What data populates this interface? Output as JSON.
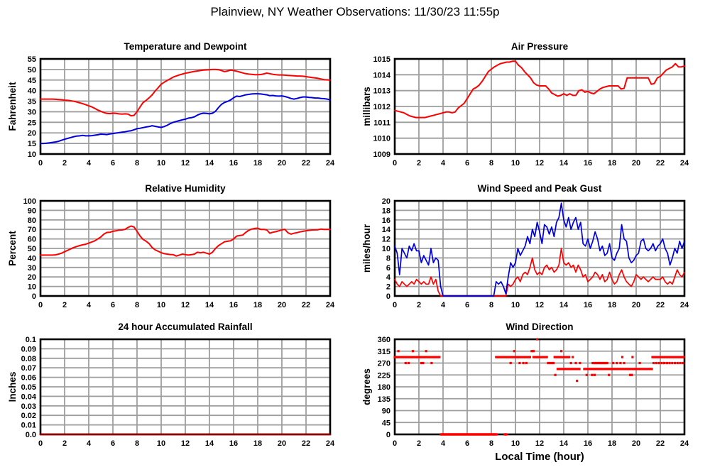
{
  "page": {
    "title": "Plainview, NY Weather Observations: 11/30/23 11:55p"
  },
  "colors": {
    "red": "#ff0000",
    "blue": "#0000dd",
    "dark_red": "#990000",
    "grid": "#9e9e9e",
    "border": "#000000",
    "background": "#ffffff"
  },
  "chart_data": [
    {
      "id": "temperature-dewpoint",
      "type": "line",
      "title": "Temperature and Dewpoint",
      "ylabel": "Fahrenheit",
      "xlabel": "",
      "xmin": 0,
      "xmax": 24,
      "xtick_step": 2,
      "ymin": 10,
      "ymax": 55,
      "yticks": [
        10,
        15,
        20,
        25,
        30,
        35,
        40,
        45,
        50,
        55
      ],
      "grid": true,
      "series": [
        {
          "name": "Temperature",
          "type": "line",
          "color_key": "red",
          "width": 2,
          "x0": 0,
          "dx": 0.25,
          "values": [
            36,
            36,
            36,
            36,
            36,
            35.9,
            35.8,
            35.7,
            35.5,
            35.4,
            35.2,
            35,
            34.6,
            34.2,
            33.8,
            33.3,
            32.8,
            32.3,
            31.6,
            30.8,
            30.2,
            29.6,
            29.2,
            29.1,
            29.3,
            29.2,
            29,
            28.9,
            29,
            28.9,
            28.1,
            28.3,
            30,
            32.3,
            34.3,
            35.4,
            36.6,
            38,
            39.8,
            41.4,
            43,
            44,
            44.8,
            45.6,
            46.4,
            46.9,
            47.4,
            47.8,
            48.2,
            48.5,
            48.8,
            49.1,
            49.3,
            49.5,
            49.7,
            49.8,
            49.9,
            50,
            50,
            49.9,
            49.5,
            49,
            49.3,
            49.7,
            49.5,
            49.2,
            48.8,
            48.4,
            48,
            47.8,
            47.7,
            47.5,
            47.5,
            47.6,
            47.9,
            48.3,
            48,
            47.7,
            47.5,
            47.4,
            47.4,
            47.3,
            47.2,
            47.1,
            47,
            46.9,
            46.9,
            46.8,
            46.6,
            46.4,
            46.2,
            46,
            45.8,
            45.5,
            45.2,
            45.1,
            45
          ]
        },
        {
          "name": "Dewpoint",
          "type": "line",
          "color_key": "blue",
          "width": 2,
          "x0": 0,
          "dx": 0.25,
          "values": [
            15,
            15,
            15.1,
            15.3,
            15.5,
            15.7,
            16,
            16.5,
            17,
            17.4,
            17.8,
            18.2,
            18.5,
            18.6,
            18.8,
            18.6,
            18.6,
            18.7,
            18.9,
            19.1,
            19.4,
            19.3,
            19.2,
            19.5,
            19.7,
            19.9,
            20.1,
            20.3,
            20.5,
            20.8,
            21,
            21.5,
            22,
            22.2,
            22.5,
            22.8,
            23,
            23.4,
            23.1,
            22.8,
            22.6,
            23,
            23.6,
            24.4,
            25,
            25.4,
            25.8,
            26.2,
            26.5,
            27,
            27.2,
            27.6,
            28.4,
            29,
            29.3,
            29.2,
            29,
            29.3,
            30.2,
            32,
            33.5,
            34.4,
            34.9,
            35.6,
            36.6,
            37.4,
            37.2,
            37.6,
            38,
            38.2,
            38.4,
            38.5,
            38.5,
            38.4,
            38.2,
            38,
            37.6,
            37.7,
            37.5,
            37.4,
            37.5,
            37.2,
            36.8,
            36.3,
            36,
            36.3,
            36.7,
            37,
            37,
            36.8,
            36.7,
            36.5,
            36.5,
            36.3,
            36.2,
            36,
            35.6
          ]
        }
      ]
    },
    {
      "id": "air-pressure",
      "type": "line",
      "title": "Air Pressure",
      "ylabel": "millibars",
      "xlabel": "",
      "xmin": 0,
      "xmax": 24,
      "xtick_step": 2,
      "ymin": 1009,
      "ymax": 1015,
      "yticks": [
        1009,
        1010,
        1011,
        1012,
        1013,
        1014,
        1015
      ],
      "grid": true,
      "series": [
        {
          "name": "Air Pressure",
          "type": "line",
          "color_key": "red",
          "width": 2,
          "x0": 0,
          "dx": 0.25,
          "values": [
            1011.75,
            1011.7,
            1011.65,
            1011.6,
            1011.5,
            1011.4,
            1011.35,
            1011.3,
            1011.3,
            1011.3,
            1011.3,
            1011.35,
            1011.4,
            1011.45,
            1011.5,
            1011.55,
            1011.6,
            1011.65,
            1011.65,
            1011.6,
            1011.65,
            1011.9,
            1012.05,
            1012.2,
            1012.5,
            1012.8,
            1013.1,
            1013.2,
            1013.35,
            1013.6,
            1013.9,
            1014.2,
            1014.35,
            1014.5,
            1014.6,
            1014.7,
            1014.75,
            1014.8,
            1014.8,
            1014.85,
            1014.85,
            1014.6,
            1014.45,
            1014.2,
            1014,
            1013.8,
            1013.5,
            1013.35,
            1013.3,
            1013.3,
            1013.3,
            1013.1,
            1012.85,
            1012.75,
            1012.65,
            1012.7,
            1012.8,
            1012.7,
            1012.8,
            1012.7,
            1012.7,
            1013,
            1013.05,
            1012.9,
            1012.95,
            1012.85,
            1012.8,
            1012.95,
            1013.1,
            1013.2,
            1013.25,
            1013.3,
            1013.3,
            1013.3,
            1013.3,
            1013.1,
            1013.15,
            1013.8,
            1013.8,
            1013.8,
            1013.8,
            1013.8,
            1013.8,
            1013.8,
            1013.8,
            1013.4,
            1013.45,
            1013.8,
            1013.9,
            1014.1,
            1014.3,
            1014.4,
            1014.5,
            1014.7,
            1014.5,
            1014.5,
            1014.55
          ]
        }
      ]
    },
    {
      "id": "relative-humidity",
      "type": "line",
      "title": "Relative Humidity",
      "ylabel": "Percent",
      "xlabel": "",
      "xmin": 0,
      "xmax": 24,
      "xtick_step": 2,
      "ymin": 0,
      "ymax": 100,
      "yticks": [
        0,
        10,
        20,
        30,
        40,
        50,
        60,
        70,
        80,
        90,
        100
      ],
      "grid": true,
      "series": [
        {
          "name": "Relative Humidity",
          "type": "line",
          "color_key": "red",
          "width": 2,
          "x0": 0,
          "dx": 0.25,
          "values": [
            43,
            43,
            43,
            43,
            43,
            43.3,
            44,
            45,
            46.5,
            48,
            49.5,
            51,
            52,
            53,
            53.8,
            54.4,
            55.5,
            56.8,
            58,
            60,
            62,
            65,
            66.8,
            67,
            68,
            68.4,
            69.3,
            69.4,
            70,
            72,
            73.5,
            72.5,
            68,
            63,
            59.5,
            57.5,
            55,
            51,
            48.5,
            47,
            45.5,
            44.5,
            44,
            43.6,
            43.4,
            42,
            43,
            44,
            43.5,
            43,
            43.4,
            44,
            46,
            45.4,
            46,
            45,
            44,
            46,
            50,
            53,
            55,
            57,
            57.5,
            58,
            60,
            63,
            63.5,
            64,
            66.8,
            69,
            70.4,
            71,
            71.3,
            70,
            70,
            69.4,
            66,
            67,
            67.6,
            68.5,
            69.5,
            70,
            66.5,
            65,
            66,
            66.6,
            67.4,
            68,
            68.5,
            69,
            69.4,
            69.5,
            69.6,
            70.4,
            70,
            70,
            70
          ]
        }
      ]
    },
    {
      "id": "wind-speed-gust",
      "type": "line",
      "title": "Wind Speed and Peak Gust",
      "ylabel": "miles/hour",
      "xlabel": "",
      "xmin": 0,
      "xmax": 24,
      "xtick_step": 2,
      "ymin": 0,
      "ymax": 20,
      "yticks": [
        0,
        2,
        4,
        6,
        8,
        10,
        12,
        14,
        16,
        18,
        20
      ],
      "grid": true,
      "series": [
        {
          "name": "Wind Speed",
          "type": "line",
          "color_key": "red",
          "width": 1.7,
          "x0": 0,
          "dx": 0.2,
          "values": [
            3.5,
            2.5,
            2,
            3,
            2.5,
            2,
            2.5,
            3,
            2.5,
            3.5,
            3,
            2.5,
            3,
            2.5,
            2.5,
            4,
            2.5,
            3.5,
            1,
            0,
            0,
            0,
            0,
            0,
            0,
            0,
            0,
            0,
            0,
            0,
            0,
            0,
            0,
            0,
            0,
            0,
            0,
            0,
            0,
            0,
            0,
            0,
            0,
            0,
            0,
            0,
            0,
            2.5,
            2,
            2.5,
            3.5,
            4,
            3,
            4.5,
            5,
            4.5,
            6,
            8,
            5.5,
            4.5,
            5,
            4.5,
            6,
            6.5,
            5.5,
            6,
            5,
            5.5,
            6.5,
            10,
            7,
            6.5,
            7,
            6,
            6.5,
            5,
            6.5,
            5.5,
            4,
            4.5,
            3,
            3.5,
            4,
            5,
            4.5,
            3.5,
            4.5,
            3,
            3.5,
            5,
            3.5,
            2.5,
            3,
            4.5,
            5.5,
            4,
            3,
            2.5,
            2,
            3,
            4.5,
            4,
            3.5,
            4,
            3.5,
            3,
            3.5,
            4,
            3.5,
            3.5,
            3.5,
            4,
            3,
            2.5,
            3,
            2.5,
            4,
            5.5,
            4.5,
            4,
            5
          ]
        },
        {
          "name": "Peak Gust",
          "type": "line",
          "color_key": "blue",
          "width": 1.7,
          "x0": 0,
          "dx": 0.2,
          "values": [
            10.5,
            9,
            4.5,
            10,
            9,
            8,
            10.5,
            9.5,
            11,
            9.5,
            9.5,
            7,
            8.5,
            7.5,
            6.5,
            10,
            7,
            8,
            7.5,
            2,
            0,
            0,
            0,
            0,
            0,
            0,
            0,
            0,
            0,
            0,
            0,
            0,
            0,
            0,
            0,
            0,
            0,
            0,
            0,
            0,
            0,
            0,
            3,
            2.5,
            3,
            2,
            0.5,
            4,
            7,
            6,
            7,
            10,
            8.5,
            9.5,
            10.5,
            12.5,
            11,
            14,
            12.5,
            15.5,
            13.5,
            11,
            15,
            14.5,
            13,
            14.5,
            12.5,
            15.5,
            16.5,
            19.5,
            16,
            14.5,
            16.5,
            14,
            15.5,
            16.5,
            14,
            15.5,
            11,
            10.5,
            12,
            10,
            11.5,
            13.5,
            12,
            9.5,
            10.5,
            8.5,
            9,
            11,
            8,
            7.5,
            9,
            10,
            15,
            12,
            11.5,
            8,
            7,
            7.5,
            8.5,
            9,
            11.5,
            12,
            10,
            9.5,
            10,
            11,
            9.5,
            10.5,
            11,
            12,
            10,
            9,
            6.5,
            8,
            10,
            9,
            11.5,
            10,
            11.5
          ]
        }
      ]
    },
    {
      "id": "rainfall",
      "type": "line",
      "title": "24 hour Accumulated Rainfall",
      "ylabel": "Inches",
      "xlabel": "",
      "xmin": 0,
      "xmax": 24,
      "xtick_step": 2,
      "ymin": 0,
      "ymax": 0.1,
      "yticks": [
        0,
        0.01,
        0.02,
        0.03,
        0.04,
        0.05,
        0.06,
        0.07,
        0.08,
        0.09,
        0.1
      ],
      "ytick_labels": [
        "0.0",
        "0.01",
        "0.02",
        "0.03",
        "0.04",
        "0.05",
        "0.06",
        "0.07",
        "0.08",
        "0.09",
        "0.1"
      ],
      "grid": true,
      "series": [
        {
          "name": "Rainfall",
          "type": "line",
          "color_key": "dark_red",
          "width": 2.5,
          "x0": 0,
          "dx": 24,
          "values": [
            0,
            0
          ]
        }
      ]
    },
    {
      "id": "wind-direction",
      "type": "scatter",
      "title": "Wind Direction",
      "ylabel": "degrees",
      "xlabel": "Local Time (hour)",
      "xmin": 0,
      "xmax": 24,
      "xtick_step": 2,
      "ymin": 0,
      "ymax": 360,
      "yticks": [
        0,
        45,
        90,
        135,
        180,
        225,
        270,
        315,
        360
      ],
      "grid": true,
      "series": [
        {
          "name": "Wind Direction",
          "type": "scatter",
          "color_key": "red",
          "size": 3.2,
          "runs": [
            {
              "y": 292.5,
              "from": 0,
              "to": 3.7,
              "step": 0.1
            },
            {
              "y": 0,
              "from": 3.8,
              "to": 8.45,
              "step": 0.05
            },
            {
              "y": 0,
              "from": 9.1,
              "to": 9.25,
              "step": 0.05
            },
            {
              "y": 292.5,
              "from": 8.4,
              "to": 11.2,
              "step": 0.1
            },
            {
              "y": 292.5,
              "from": 11.5,
              "to": 12.65,
              "step": 0.1
            },
            {
              "y": 292.5,
              "from": 13.25,
              "to": 14.45,
              "step": 0.1
            },
            {
              "y": 247.5,
              "from": 13.5,
              "to": 15.4,
              "step": 0.12
            },
            {
              "y": 247.5,
              "from": 15.7,
              "to": 21.3,
              "step": 0.1
            },
            {
              "y": 270,
              "from": 16.4,
              "to": 17.65,
              "step": 0.12
            },
            {
              "y": 270,
              "from": 18.1,
              "to": 19.05,
              "step": 0.3
            },
            {
              "y": 292.5,
              "from": 21.35,
              "to": 24,
              "step": 0.1
            },
            {
              "y": 270,
              "from": 21.45,
              "to": 23.95,
              "step": 0.22
            }
          ],
          "dots": [
            [
              0.3,
              315
            ],
            [
              1.5,
              315
            ],
            [
              2.6,
              315
            ],
            [
              9.9,
              315
            ],
            [
              11.35,
              315
            ],
            [
              11.5,
              315
            ],
            [
              13.8,
              315
            ],
            [
              0.9,
              270
            ],
            [
              1.15,
              270
            ],
            [
              2.2,
              270
            ],
            [
              2.35,
              270
            ],
            [
              3.05,
              270
            ],
            [
              9.6,
              270
            ],
            [
              10.35,
              270
            ],
            [
              10.65,
              270
            ],
            [
              10.9,
              270
            ],
            [
              12.7,
              270
            ],
            [
              12.85,
              270
            ],
            [
              13.0,
              270
            ],
            [
              13.15,
              270
            ],
            [
              14.6,
              270
            ],
            [
              15.0,
              270
            ],
            [
              15.35,
              270
            ],
            [
              20.3,
              270
            ],
            [
              11.8,
              360
            ],
            [
              13.3,
              225
            ],
            [
              15.9,
              225
            ],
            [
              16.35,
              225
            ],
            [
              16.55,
              225
            ],
            [
              17.75,
              225
            ],
            [
              19.5,
              225
            ],
            [
              19.65,
              225
            ],
            [
              15.1,
              202.5
            ],
            [
              14.75,
              292.5
            ],
            [
              18.85,
              292.5
            ],
            [
              19.7,
              292.5
            ]
          ]
        }
      ]
    }
  ]
}
